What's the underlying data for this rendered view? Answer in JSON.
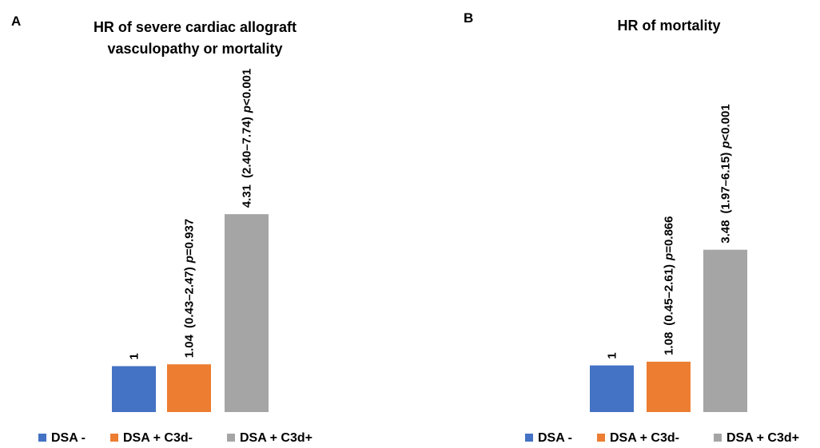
{
  "colors": {
    "dsa_neg": "#4472C4",
    "c3d_neg": "#ED7D31",
    "c3d_pos": "#A5A5A5"
  },
  "chart_data": [
    {
      "type": "bar",
      "panel": "A",
      "title": [
        "HR of severe cardiac allograft",
        "vasculopathy or mortality"
      ],
      "categories": [
        "DSA -",
        "DSA + C3d-",
        "DSA + C3d+"
      ],
      "values": [
        1,
        1.04,
        4.31
      ],
      "data_labels": [
        {
          "hr": "1"
        },
        {
          "hr": "1.04",
          "ci": "(0.43–2.47)",
          "p_letter": "p",
          "p_value": "=0.937"
        },
        {
          "hr": "4.31",
          "ci": "(2.40–7.74)",
          "p_letter": "p",
          "p_value": "<0.001"
        }
      ],
      "legend": {
        "position": "bottom",
        "entries": [
          "DSA -",
          "DSA + C3d-",
          "DSA + C3d+"
        ]
      },
      "grid": false,
      "ylim": [
        0,
        10
      ]
    },
    {
      "type": "bar",
      "panel": "B",
      "title": [
        "HR of mortality"
      ],
      "categories": [
        "DSA -",
        "DSA + C3d-",
        "DSA + C3d+"
      ],
      "values": [
        1,
        1.08,
        3.48
      ],
      "data_labels": [
        {
          "hr": "1"
        },
        {
          "hr": "1.08",
          "ci": "(0.45–2.61)",
          "p_letter": "p",
          "p_value": "=0.866"
        },
        {
          "hr": "3.48",
          "ci": "(1.97–6.15)",
          "p_letter": "p",
          "p_value": "<0.001"
        }
      ],
      "legend": {
        "position": "bottom",
        "entries": [
          "DSA -",
          "DSA + C3d-",
          "DSA + C3d+"
        ]
      },
      "grid": false,
      "ylim": [
        0,
        8.2
      ]
    }
  ]
}
